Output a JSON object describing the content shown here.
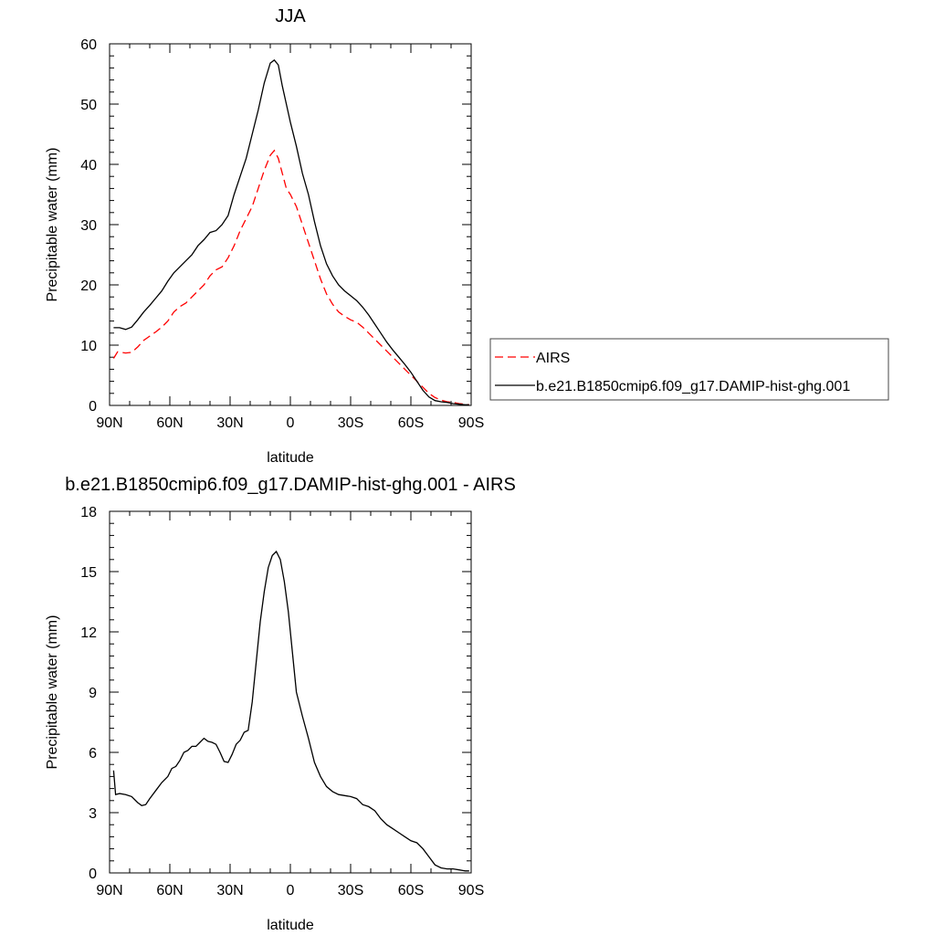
{
  "chart_data": [
    {
      "type": "line",
      "title": "JJA",
      "xlabel": "latitude",
      "ylabel": "Precipitable water (mm)",
      "xlim": [
        90,
        -90
      ],
      "ylim": [
        0,
        60
      ],
      "xticks": [
        90,
        60,
        30,
        0,
        -30,
        -60,
        -90
      ],
      "xtick_labels": [
        "90N",
        "60N",
        "30N",
        "0",
        "30S",
        "60S",
        "90S"
      ],
      "yticks": [
        0,
        10,
        20,
        30,
        40,
        50,
        60
      ],
      "ytick_labels": [
        "0",
        "10",
        "20",
        "30",
        "40",
        "50",
        "60"
      ],
      "grid": false,
      "legend_position": "right",
      "series": [
        {
          "name": "AIRS",
          "color": "#ff0000",
          "dash": "dashed",
          "x": [
            88,
            86,
            82,
            79,
            76,
            73,
            70,
            67,
            64,
            61,
            58,
            55,
            52,
            49,
            46,
            43,
            40,
            37,
            34,
            31,
            28,
            25,
            22,
            19,
            16,
            13,
            10,
            8,
            6,
            4,
            2,
            0,
            -3,
            -6,
            -9,
            -12,
            -15,
            -18,
            -21,
            -24,
            -27,
            -30,
            -33,
            -36,
            -39,
            -42,
            -45,
            -48,
            -51,
            -54,
            -57,
            -60,
            -63,
            -66,
            -69,
            -72,
            -75,
            -78,
            -81,
            -84,
            -87,
            -89
          ],
          "y": [
            7.8,
            8.9,
            8.7,
            8.8,
            9.7,
            10.8,
            11.5,
            12.2,
            13,
            14,
            15.5,
            16.4,
            17,
            18,
            19,
            20,
            21.5,
            22.5,
            23,
            24.5,
            26.5,
            29,
            31,
            33,
            36,
            39,
            41.5,
            42.3,
            41,
            38.5,
            36,
            35,
            33,
            30,
            27,
            24,
            21,
            18.5,
            16.8,
            15.5,
            14.8,
            14.2,
            13.8,
            13,
            12,
            11,
            10,
            9,
            8,
            7,
            6,
            5,
            4,
            3,
            2,
            1.3,
            0.9,
            0.6,
            0.5,
            0.3,
            0.2,
            0.1
          ]
        },
        {
          "name": "b.e21.B1850cmip6.f09_g17.DAMIP-hist-ghg.001",
          "color": "#000000",
          "dash": "solid",
          "x": [
            88,
            85,
            82,
            79,
            76,
            73,
            70,
            67,
            64,
            61,
            58,
            55,
            52,
            49,
            46,
            43,
            40,
            37,
            34,
            31,
            28,
            25,
            22,
            19,
            16,
            13,
            10,
            8,
            6,
            4,
            2,
            0,
            -3,
            -6,
            -9,
            -12,
            -15,
            -18,
            -21,
            -24,
            -27,
            -30,
            -33,
            -36,
            -39,
            -42,
            -45,
            -48,
            -51,
            -54,
            -57,
            -60,
            -63,
            -66,
            -69,
            -72,
            -75,
            -78,
            -81,
            -84,
            -87,
            -89
          ],
          "y": [
            12.9,
            12.9,
            12.6,
            13,
            14.2,
            15.5,
            16.6,
            17.8,
            19,
            20.6,
            22,
            23,
            24,
            25,
            26.5,
            27.5,
            28.7,
            29,
            30,
            31.5,
            35,
            38,
            41,
            45,
            49,
            53.5,
            56.8,
            57.3,
            56.5,
            53,
            50,
            47,
            43,
            38.5,
            35,
            30.5,
            26.5,
            23.5,
            21.5,
            20,
            19,
            18.2,
            17.4,
            16.3,
            15,
            13.5,
            12,
            10.5,
            9.2,
            8,
            6.8,
            5.5,
            4,
            2.5,
            1.4,
            0.8,
            0.6,
            0.5,
            0.3,
            0.2,
            0.1,
            0.1
          ]
        }
      ]
    },
    {
      "type": "line",
      "title": "b.e21.B1850cmip6.f09_g17.DAMIP-hist-ghg.001 - AIRS",
      "xlabel": "latitude",
      "ylabel": "Precipitable water (mm)",
      "xlim": [
        90,
        -90
      ],
      "ylim": [
        0,
        18
      ],
      "xticks": [
        90,
        60,
        30,
        0,
        -30,
        -60,
        -90
      ],
      "xtick_labels": [
        "90N",
        "60N",
        "30N",
        "0",
        "30S",
        "60S",
        "90S"
      ],
      "yticks": [
        0,
        3,
        6,
        9,
        12,
        15,
        18
      ],
      "ytick_labels": [
        "0",
        "3",
        "6",
        "9",
        "12",
        "15",
        "18"
      ],
      "grid": false,
      "series": [
        {
          "color": "#000000",
          "dash": "solid",
          "x": [
            88,
            87,
            85,
            82,
            79,
            76,
            74,
            72,
            70,
            67,
            64,
            61,
            59,
            57,
            55,
            53,
            51,
            49,
            47,
            45,
            43,
            41,
            39,
            37,
            35,
            33,
            31,
            29,
            27,
            25,
            23,
            21,
            19,
            17,
            15,
            13,
            11,
            9,
            7,
            5,
            3,
            1,
            -1,
            -3,
            -6,
            -9,
            -12,
            -15,
            -18,
            -21,
            -24,
            -27,
            -30,
            -33,
            -36,
            -39,
            -42,
            -45,
            -48,
            -51,
            -54,
            -57,
            -60,
            -63,
            -66,
            -69,
            -72,
            -75,
            -78,
            -81,
            -84,
            -87,
            -89
          ],
          "y": [
            5.1,
            3.9,
            3.95,
            3.9,
            3.8,
            3.5,
            3.35,
            3.4,
            3.7,
            4.1,
            4.5,
            4.8,
            5.2,
            5.3,
            5.6,
            6.0,
            6.1,
            6.3,
            6.3,
            6.5,
            6.7,
            6.55,
            6.5,
            6.4,
            6.0,
            5.55,
            5.5,
            5.9,
            6.4,
            6.6,
            7.0,
            7.1,
            8.5,
            10.5,
            12.5,
            14,
            15.2,
            15.8,
            16.0,
            15.6,
            14.5,
            13,
            11,
            9,
            7.8,
            6.7,
            5.5,
            4.8,
            4.3,
            4.05,
            3.9,
            3.85,
            3.8,
            3.7,
            3.4,
            3.3,
            3.1,
            2.7,
            2.4,
            2.2,
            2.0,
            1.8,
            1.6,
            1.5,
            1.2,
            0.8,
            0.4,
            0.25,
            0.2,
            0.2,
            0.15,
            0.1,
            0.1
          ]
        }
      ]
    }
  ]
}
